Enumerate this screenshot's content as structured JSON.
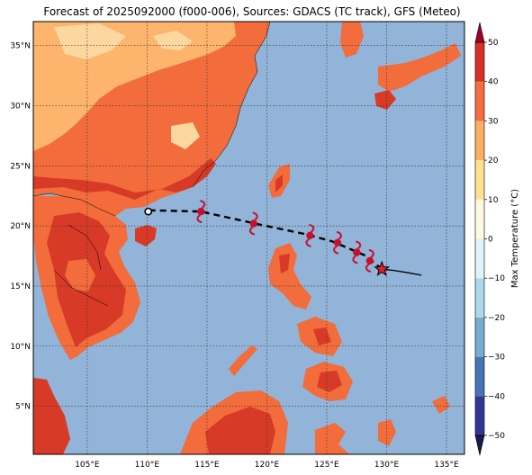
{
  "title": "Forecast of 2025092000 (f000-006), Sources: GDACS (TC track), GFS (Meteo)",
  "map": {
    "lon_range": [
      100.5,
      136.5
    ],
    "lat_range": [
      1,
      37
    ],
    "lon_ticks": [
      {
        "value": 105,
        "label": "105°E"
      },
      {
        "value": 110,
        "label": "110°E"
      },
      {
        "value": 115,
        "label": "115°E"
      },
      {
        "value": 120,
        "label": "120°E"
      },
      {
        "value": 125,
        "label": "125°E"
      },
      {
        "value": 130,
        "label": "130°E"
      },
      {
        "value": 135,
        "label": "135°E"
      }
    ],
    "lat_ticks": [
      {
        "value": 5,
        "label": "5°N"
      },
      {
        "value": 10,
        "label": "10°N"
      },
      {
        "value": 15,
        "label": "15°N"
      },
      {
        "value": 20,
        "label": "20°N"
      },
      {
        "value": 25,
        "label": "25°N"
      },
      {
        "value": 30,
        "label": "30°N"
      },
      {
        "value": 35,
        "label": "35°N"
      }
    ],
    "grid": true,
    "ocean_color": "#91b4d8",
    "land_colors": {
      "hot": "#d73a27",
      "warm": "#f26c3c",
      "mild": "#fdb46c",
      "pale": "#fdd7a0"
    }
  },
  "track": {
    "past_line": [
      [
        132.9,
        15.9
      ],
      [
        131.8,
        16.1
      ],
      [
        130.6,
        16.3
      ],
      [
        129.6,
        16.4
      ]
    ],
    "current": [
      129.6,
      16.4
    ],
    "forecast_line": [
      [
        129.6,
        16.4
      ],
      [
        128.3,
        17.5
      ],
      [
        125.5,
        18.7
      ],
      [
        123.3,
        19.3
      ],
      [
        119.0,
        20.2
      ],
      [
        114.5,
        21.2
      ],
      [
        110.2,
        21.3
      ]
    ],
    "storm_icons": [
      [
        128.6,
        17.1
      ],
      [
        127.5,
        17.8
      ],
      [
        125.9,
        18.6
      ],
      [
        123.6,
        19.2
      ],
      [
        118.9,
        20.2
      ],
      [
        114.5,
        21.2
      ]
    ],
    "landfall": [
      110.1,
      21.2
    ],
    "colors": {
      "storm": "#c8102e",
      "line": "#000000",
      "star": "#e4202a"
    }
  },
  "colorbar": {
    "label": "Max Temperature (°C)",
    "min": -50,
    "max": 50,
    "levels": [
      {
        "from": -50,
        "to": -40,
        "color": "#313695"
      },
      {
        "from": -40,
        "to": -30,
        "color": "#4575b4"
      },
      {
        "from": -30,
        "to": -20,
        "color": "#74add1"
      },
      {
        "from": -20,
        "to": -10,
        "color": "#abd9e9"
      },
      {
        "from": -10,
        "to": 0,
        "color": "#e0f3f8"
      },
      {
        "from": 0,
        "to": 10,
        "color": "#fffbe0"
      },
      {
        "from": 10,
        "to": 20,
        "color": "#fee090"
      },
      {
        "from": 20,
        "to": 30,
        "color": "#fdae61"
      },
      {
        "from": 30,
        "to": 40,
        "color": "#f46d43"
      },
      {
        "from": 40,
        "to": 50,
        "color": "#d73027"
      }
    ],
    "extend_low_color": "#1a1a4e",
    "extend_high_color": "#a50026",
    "ticks": [
      "50",
      "40",
      "30",
      "20",
      "10",
      "0",
      "−10",
      "−20",
      "−30",
      "−40",
      "−50"
    ]
  }
}
